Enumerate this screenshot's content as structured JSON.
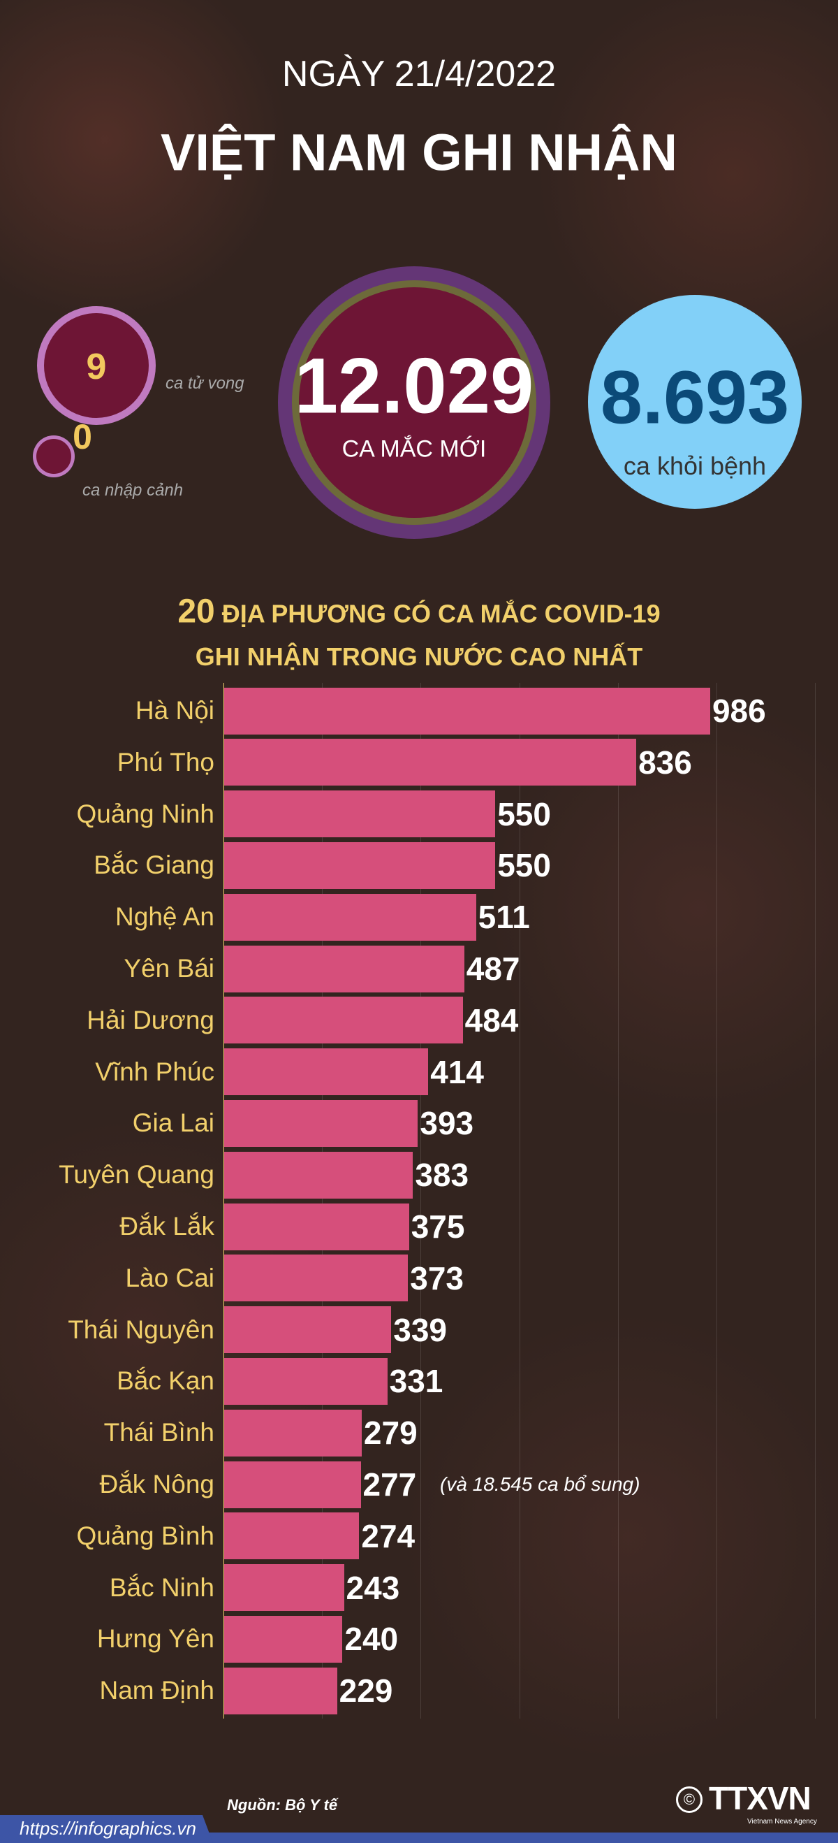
{
  "header": {
    "date": "NGÀY 21/4/2022",
    "headline": "VIỆT NAM GHI NHẬN"
  },
  "stats": {
    "new_cases": {
      "value": "12.029",
      "label": "CA MẮC MỚI"
    },
    "recovered": {
      "value": "8.693",
      "label": "ca khỏi bệnh"
    },
    "deaths": {
      "value": "9",
      "label": "ca tử vong"
    },
    "imported": {
      "value": "0",
      "label": "ca nhập cảnh"
    }
  },
  "chart_data": {
    "type": "bar",
    "orientation": "horizontal",
    "title_number": "20",
    "title_line1": "ĐỊA PHƯƠNG CÓ CA MẮC COVID-19",
    "title_line2": "GHI NHẬN TRONG NƯỚC CAO NHẤT",
    "categories": [
      "Hà Nội",
      "Phú Thọ",
      "Quảng Ninh",
      "Bắc Giang",
      "Nghệ An",
      "Yên Bái",
      "Hải Dương",
      "Vĩnh Phúc",
      "Gia Lai",
      "Tuyên Quang",
      "Đắk Lắk",
      "Lào Cai",
      "Thái Nguyên",
      "Bắc Kạn",
      "Thái Bình",
      "Đắk Nông",
      "Quảng Bình",
      "Bắc Ninh",
      "Hưng Yên",
      "Nam Định"
    ],
    "values": [
      986,
      836,
      550,
      550,
      511,
      487,
      484,
      414,
      393,
      383,
      375,
      373,
      339,
      331,
      279,
      277,
      274,
      243,
      240,
      229
    ],
    "annotation": "(và 18.545 ca bổ sung)",
    "xlim": [
      0,
      1200
    ],
    "grid": true,
    "bar_color": "#d64f7b",
    "label_color": "#f2d06b"
  },
  "footer": {
    "source": "Nguồn: Bộ Y tế",
    "url": "https://infographics.vn",
    "logo": "TTXVN",
    "logo_sub": "Vietnam News Agency",
    "copyright": "©"
  }
}
